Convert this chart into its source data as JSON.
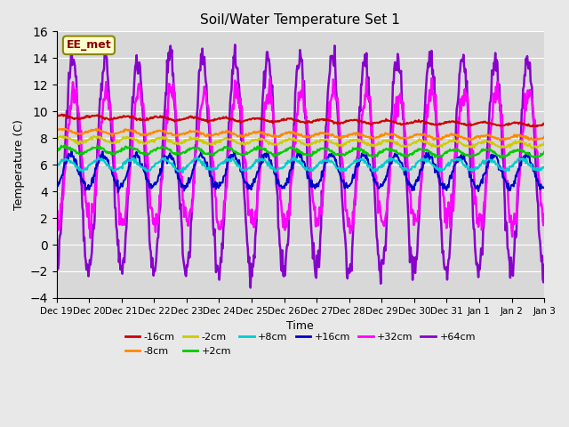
{
  "title": "Soil/Water Temperature Set 1",
  "xlabel": "Time",
  "ylabel": "Temperature (C)",
  "ylim": [
    -4,
    16
  ],
  "yticks": [
    -4,
    -2,
    0,
    2,
    4,
    6,
    8,
    10,
    12,
    14,
    16
  ],
  "background_color": "#e8e8e8",
  "plot_bg_color": "#d8d8d8",
  "watermark": "EE_met",
  "n_days": 15,
  "series_params": {
    "-16cm": {
      "color": "#cc0000",
      "base": 9.6,
      "amplitude": 0.12,
      "trend": -0.6,
      "freq": 1.0,
      "noise": 0.04,
      "phase": 0.5
    },
    "-8cm": {
      "color": "#ff8800",
      "base": 8.5,
      "amplitude": 0.15,
      "trend": -0.5,
      "freq": 1.0,
      "noise": 0.05,
      "phase": 0.3
    },
    "-2cm": {
      "color": "#cccc00",
      "base": 7.9,
      "amplitude": 0.2,
      "trend": -0.4,
      "freq": 1.0,
      "noise": 0.06,
      "phase": 0.2
    },
    "+2cm": {
      "color": "#00cc00",
      "base": 7.1,
      "amplitude": 0.25,
      "trend": -0.25,
      "freq": 1.0,
      "noise": 0.06,
      "phase": 0.1
    },
    "+8cm": {
      "color": "#00cccc",
      "base": 6.0,
      "amplitude": 0.4,
      "trend": 0.0,
      "freq": 1.0,
      "noise": 0.08,
      "phase": -0.3
    },
    "+16cm": {
      "color": "#0000cc",
      "base": 5.5,
      "amplitude": 1.2,
      "trend": 0.0,
      "freq": 1.0,
      "noise": 0.15,
      "phase": -1.2
    },
    "+32cm": {
      "color": "#ff00ff",
      "base": 6.5,
      "amplitude": 5.0,
      "trend": 0.0,
      "freq": 1.0,
      "noise": 0.5,
      "phase": -1.8
    },
    "+64cm": {
      "color": "#8800cc",
      "base": 6.0,
      "amplitude": 8.0,
      "trend": 0.0,
      "freq": 1.0,
      "noise": 0.5,
      "phase": -1.5
    }
  },
  "legend_entries": [
    [
      "-16cm",
      "#cc0000"
    ],
    [
      "-8cm",
      "#ff8800"
    ],
    [
      "-2cm",
      "#cccc00"
    ],
    [
      "+2cm",
      "#00cc00"
    ],
    [
      "+8cm",
      "#00cccc"
    ],
    [
      "+16cm",
      "#0000cc"
    ],
    [
      "+32cm",
      "#ff00ff"
    ],
    [
      "+64cm",
      "#8800cc"
    ]
  ]
}
